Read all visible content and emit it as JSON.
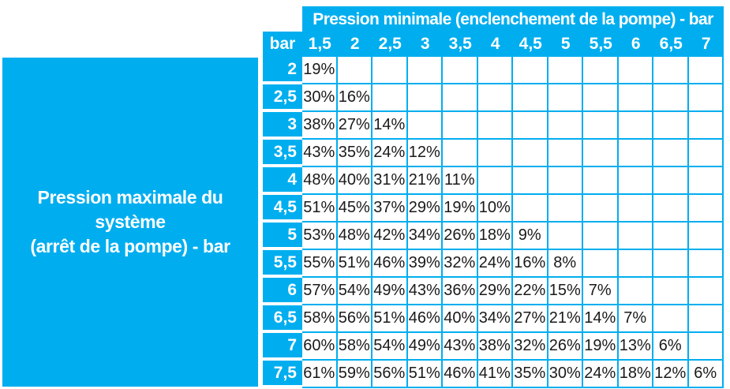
{
  "colors": {
    "accent": "#00AEEF",
    "grid_line": "#00AEEF",
    "header_text": "#FFFFFF",
    "cell_text": "#1A1A1A",
    "cell_background": "#FFFFFF"
  },
  "table": {
    "title_row": "Pression minimale (enclenchement de la pompe) - bar",
    "corner_label": "bar",
    "column_headers": [
      "1,5",
      "2",
      "2,5",
      "3",
      "3,5",
      "4",
      "4,5",
      "5",
      "5,5",
      "6",
      "6,5",
      "7"
    ],
    "left_label": {
      "line1": "Pression maximale du système",
      "line2": "(arrêt de la pompe) - bar"
    },
    "rows": [
      {
        "label": "2",
        "values": [
          "19%"
        ]
      },
      {
        "label": "2,5",
        "values": [
          "30%",
          "16%"
        ]
      },
      {
        "label": "3",
        "values": [
          "38%",
          "27%",
          "14%"
        ]
      },
      {
        "label": "3,5",
        "values": [
          "43%",
          "35%",
          "24%",
          "12%"
        ]
      },
      {
        "label": "4",
        "values": [
          "48%",
          "40%",
          "31%",
          "21%",
          "11%"
        ]
      },
      {
        "label": "4,5",
        "values": [
          "51%",
          "45%",
          "37%",
          "29%",
          "19%",
          "10%"
        ]
      },
      {
        "label": "5",
        "values": [
          "53%",
          "48%",
          "42%",
          "34%",
          "26%",
          "18%",
          "9%"
        ]
      },
      {
        "label": "5,5",
        "values": [
          "55%",
          "51%",
          "46%",
          "39%",
          "32%",
          "24%",
          "16%",
          "8%"
        ]
      },
      {
        "label": "6",
        "values": [
          "57%",
          "54%",
          "49%",
          "43%",
          "36%",
          "29%",
          "22%",
          "15%",
          "7%"
        ]
      },
      {
        "label": "6,5",
        "values": [
          "58%",
          "56%",
          "51%",
          "46%",
          "40%",
          "34%",
          "27%",
          "21%",
          "14%",
          "7%"
        ]
      },
      {
        "label": "7",
        "values": [
          "60%",
          "58%",
          "54%",
          "49%",
          "43%",
          "38%",
          "32%",
          "26%",
          "19%",
          "13%",
          "6%"
        ]
      },
      {
        "label": "7,5",
        "values": [
          "61%",
          "59%",
          "56%",
          "51%",
          "46%",
          "41%",
          "35%",
          "30%",
          "24%",
          "18%",
          "12%",
          "6%"
        ]
      }
    ]
  },
  "chart_data": {
    "type": "table",
    "title": "Pression minimale (enclenchement de la pompe) - bar",
    "columns_axis_label": "Pression minimale (enclenchement de la pompe) - bar",
    "rows_axis_label": "Pression maximale du système (arrêt de la pompe) - bar",
    "unit": "bar",
    "value_unit": "%",
    "columns": [
      1.5,
      2,
      2.5,
      3,
      3.5,
      4,
      4.5,
      5,
      5.5,
      6,
      6.5,
      7
    ],
    "row_keys": [
      2,
      2.5,
      3,
      3.5,
      4,
      4.5,
      5,
      5.5,
      6,
      6.5,
      7,
      7.5
    ],
    "values_percent": [
      [
        19,
        null,
        null,
        null,
        null,
        null,
        null,
        null,
        null,
        null,
        null,
        null
      ],
      [
        30,
        16,
        null,
        null,
        null,
        null,
        null,
        null,
        null,
        null,
        null,
        null
      ],
      [
        38,
        27,
        14,
        null,
        null,
        null,
        null,
        null,
        null,
        null,
        null,
        null
      ],
      [
        43,
        35,
        24,
        12,
        null,
        null,
        null,
        null,
        null,
        null,
        null,
        null
      ],
      [
        48,
        40,
        31,
        21,
        11,
        null,
        null,
        null,
        null,
        null,
        null,
        null
      ],
      [
        51,
        45,
        37,
        29,
        19,
        10,
        null,
        null,
        null,
        null,
        null,
        null
      ],
      [
        53,
        48,
        42,
        34,
        26,
        18,
        9,
        null,
        null,
        null,
        null,
        null
      ],
      [
        55,
        51,
        46,
        39,
        32,
        24,
        16,
        8,
        null,
        null,
        null,
        null
      ],
      [
        57,
        54,
        49,
        43,
        36,
        29,
        22,
        15,
        7,
        null,
        null,
        null
      ],
      [
        58,
        56,
        51,
        46,
        40,
        34,
        27,
        21,
        14,
        7,
        null,
        null
      ],
      [
        60,
        58,
        54,
        49,
        43,
        38,
        32,
        26,
        19,
        13,
        6,
        null
      ],
      [
        61,
        59,
        56,
        51,
        46,
        41,
        35,
        30,
        24,
        18,
        12,
        6
      ]
    ],
    "layout": {
      "grid": true,
      "header_position": "top-and-left",
      "triangular": "lower"
    }
  }
}
